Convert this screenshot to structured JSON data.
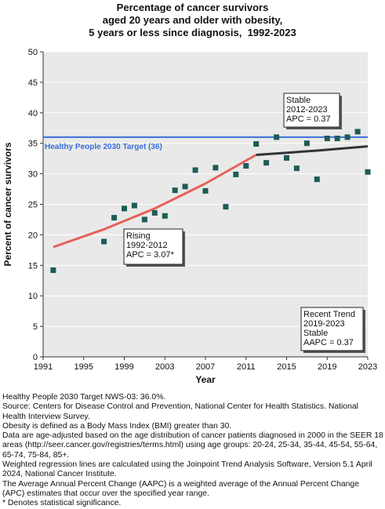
{
  "chart_data": {
    "type": "scatter",
    "title": [
      "Percentage of cancer survivors",
      "aged 20 years and older with obesity,",
      "5 years or less since diagnosis,  1992-2023"
    ],
    "xlabel": "Year",
    "ylabel": "Percent of cancer survivors",
    "xlim": [
      1991,
      2023
    ],
    "ylim": [
      0,
      50
    ],
    "x_ticks": [
      1991,
      1995,
      1999,
      2003,
      2007,
      2011,
      2015,
      2019,
      2023
    ],
    "y_ticks": [
      0,
      5,
      10,
      15,
      20,
      25,
      30,
      35,
      40,
      45,
      50
    ],
    "grid": "horizontal",
    "background": "#e9e9e9",
    "observed": {
      "color": "#1d5c57",
      "x": [
        1992,
        1997,
        1998,
        1999,
        2000,
        2001,
        2002,
        2003,
        2004,
        2005,
        2006,
        2007,
        2008,
        2009,
        2010,
        2011,
        2012,
        2013,
        2014,
        2015,
        2016,
        2017,
        2018,
        2019,
        2020,
        2021,
        2022,
        2023
      ],
      "y": [
        14.2,
        18.9,
        22.8,
        24.3,
        24.8,
        22.5,
        23.6,
        23.1,
        27.3,
        27.9,
        30.6,
        27.2,
        31.0,
        24.6,
        29.9,
        31.3,
        34.9,
        31.8,
        36.0,
        32.6,
        30.9,
        35.0,
        29.1,
        35.8,
        35.8,
        36.0,
        36.9,
        30.3
      ]
    },
    "trend_segments": [
      {
        "color": "#e8605a",
        "x": [
          1992,
          1997,
          2002,
          2007,
          2012
        ],
        "y": [
          18.0,
          20.9,
          24.3,
          28.4,
          33.1
        ]
      },
      {
        "color": "#333333",
        "x": [
          2012,
          2018,
          2023
        ],
        "y": [
          33.1,
          33.8,
          34.5
        ]
      }
    ],
    "target": {
      "value": 36,
      "label": "Healthy People 2030 Target (36)",
      "color": "#3a6fd8"
    },
    "annotations": {
      "stable": [
        "Stable",
        "2012-2023",
        "APC =  0.37"
      ],
      "rising": [
        "Rising",
        "1992-2012",
        "APC =  3.07*"
      ],
      "recent": [
        "Recent Trend",
        "2019-2023",
        "Stable",
        "AAPC =  0.37"
      ]
    }
  },
  "footnotes": [
    "Healthy People 2030 Target NWS-03: 36.0%.",
    "Source: Centers for Disease Control and Prevention, National Center for Health Statistics. National Health Interview Survey.",
    "Obesity is defined as a Body Mass Index (BMI) greater than 30.",
    "Data are age-adjusted based on the age distribution of cancer patients diagnosed in 2000 in the SEER 18 areas (http://seer.cancer.gov/registries/terms.html) using age groups: 20-24, 25-34, 35-44, 45-54, 55-64, 65-74, 75-84, 85+.",
    "Weighted regression lines are calculated using the Joinpoint Trend Analysis Software, Version 5.1 April 2024, National Cancer Institute.",
    "The Average Annual Percent Change (AAPC) is a weighted average of the Annual Percent Change (APC) estimates that occur over the specified year range.",
    "* Denotes statistical significance."
  ]
}
